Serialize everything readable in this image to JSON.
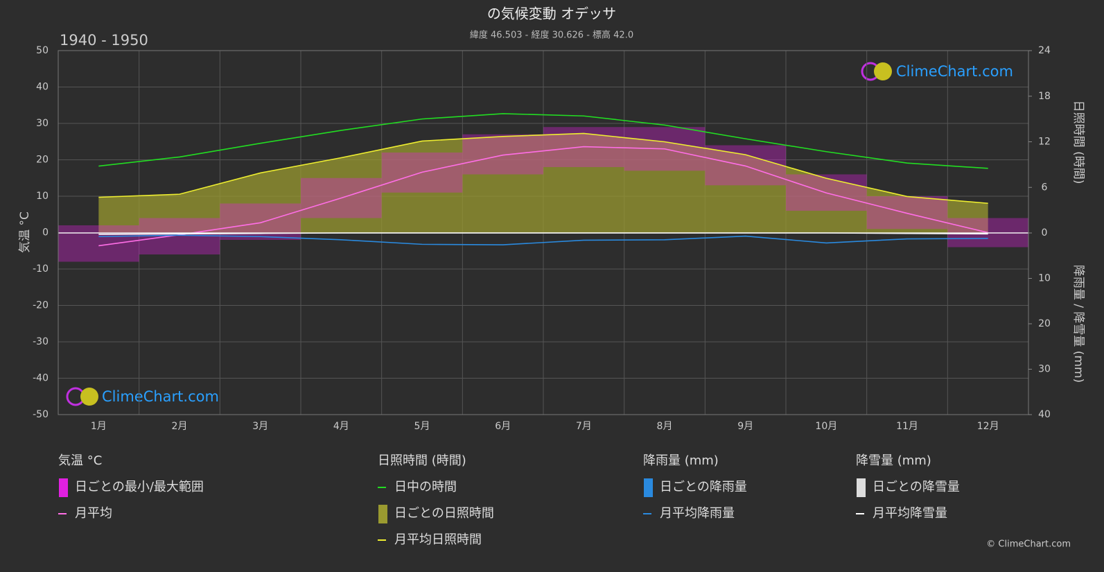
{
  "chart_data": {
    "type": "climate",
    "title": "の気候変動 オデッサ",
    "subtitle": "緯度 46.503 - 経度 30.626 - 標高 42.0",
    "period": "1940 - 1950",
    "watermark": "ClimeChart.com",
    "copyright": "© ClimeChart.com",
    "categories": [
      "1月",
      "2月",
      "3月",
      "4月",
      "5月",
      "6月",
      "7月",
      "8月",
      "9月",
      "10月",
      "11月",
      "12月"
    ],
    "ylabel": "気温 °C",
    "y2label": "日照時間 (時間)",
    "y3label": "降雨量 / 降雪量 (mm)",
    "ylim": [
      -50,
      50
    ],
    "yticks": [
      -50,
      -40,
      -30,
      -20,
      -10,
      0,
      10,
      20,
      30,
      40,
      50
    ],
    "y2lim": [
      0,
      24
    ],
    "y2ticks": [
      0,
      6,
      12,
      18,
      24
    ],
    "y3lim": [
      0,
      40
    ],
    "y3ticks": [
      0,
      10,
      20,
      30,
      40
    ],
    "grid": true,
    "legend_groups": [
      {
        "title": "気温 °C",
        "series": [
          {
            "name": "日ごとの最小/最大範囲",
            "color": "#e020e0",
            "axis": "y",
            "style": "range",
            "low": [
              -8,
              -6,
              -2,
              4,
              11,
              16,
              18,
              17,
              13,
              6,
              1,
              -4
            ],
            "high": [
              2,
              4,
              8,
              15,
              22,
              27,
              29,
              29,
              24,
              16,
              10,
              4
            ]
          },
          {
            "name": "月平均",
            "color": "#ff6ee6",
            "axis": "y",
            "style": "line",
            "values": [
              -3.6,
              -0.6,
              2.7,
              9.5,
              16.6,
              21.3,
              23.6,
              23.0,
              18.3,
              10.9,
              5.3,
              0
            ]
          }
        ]
      },
      {
        "title": "日照時間 (時間)",
        "series": [
          {
            "name": "日中の時間",
            "color": "#22dd22",
            "axis": "y2",
            "style": "line",
            "values": [
              8.8,
              10.0,
              11.8,
              13.5,
              15.0,
              15.7,
              15.4,
              14.2,
              12.4,
              10.7,
              9.2,
              8.5
            ]
          },
          {
            "name": "日ごとの日照時間",
            "color": "#9a9a30",
            "axis": "y2",
            "style": "area",
            "values": [
              4.7,
              5.1,
              7.9,
              9.9,
              12.1,
              12.7,
              13.1,
              12.0,
              10.3,
              7.2,
              4.8,
              3.9
            ]
          },
          {
            "name": "月平均日照時間",
            "color": "#eeee30",
            "axis": "y2",
            "style": "line",
            "values": [
              4.7,
              5.1,
              7.9,
              9.9,
              12.1,
              12.7,
              13.1,
              12.0,
              10.3,
              7.2,
              4.8,
              3.9
            ]
          }
        ]
      },
      {
        "title": "降雨量 (mm)",
        "series": [
          {
            "name": "日ごとの降雨量",
            "color": "#2a8adf",
            "axis": "y3",
            "style": "swatch"
          },
          {
            "name": "月平均降雨量",
            "color": "#2a8adf",
            "axis": "y3",
            "style": "line",
            "values": [
              0.8,
              0.5,
              0.8,
              1.5,
              2.5,
              2.6,
              1.6,
              1.5,
              0.7,
              2.2,
              1.3,
              1.2
            ]
          }
        ]
      },
      {
        "title": "降雪量 (mm)",
        "series": [
          {
            "name": "日ごとの降雪量",
            "color": "#dddddd",
            "axis": "y3",
            "style": "swatch"
          },
          {
            "name": "月平均降雪量",
            "color": "#ffffff",
            "axis": "y3",
            "style": "line",
            "values": [
              0.3,
              0.2,
              0.1,
              0,
              0,
              0,
              0,
              0,
              0,
              0,
              0.1,
              0.2
            ]
          }
        ]
      }
    ]
  }
}
